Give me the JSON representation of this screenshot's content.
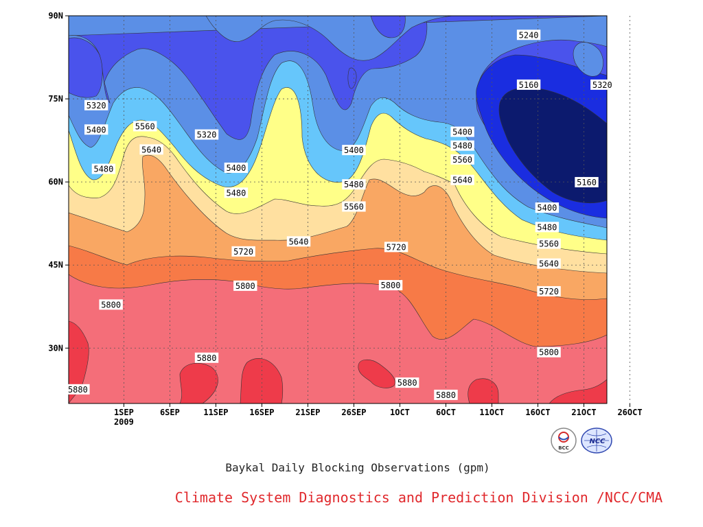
{
  "chart_data": {
    "type": "heatmap",
    "title": "Baykal Daily Blocking Observations (gpm)",
    "xlabel": "",
    "ylabel": "",
    "x_ticks": [
      "1SEP",
      "6SEP",
      "11SEP",
      "16SEP",
      "21SEP",
      "26SEP",
      "1OCT",
      "6OCT",
      "11OCT",
      "16OCT",
      "21OCT",
      "26OCT"
    ],
    "x_year_label": "2009",
    "y_ticks": [
      "90N",
      "75N",
      "60N",
      "45N",
      "30N"
    ],
    "x_domain_days": [
      -3,
      55.5
    ],
    "y_domain_lat": [
      20,
      90
    ],
    "contour_levels": [
      5160,
      5240,
      5320,
      5400,
      5480,
      5560,
      5640,
      5720,
      5800,
      5880
    ],
    "contour_fill_colors": [
      "#0c1a6e",
      "#1a2de0",
      "#4a53ec",
      "#5b8fe6",
      "#66c6fb",
      "#ffff88",
      "#ffe0a0",
      "#f9a763",
      "#f77a47",
      "#f46e79",
      "#ee3b4a"
    ],
    "zero_day_date": "2009-08-29",
    "contour_value_labels": [
      {
        "level": 5320,
        "day": 0.0,
        "lat": 73.8
      },
      {
        "level": 5400,
        "day": 0.0,
        "lat": 69.4
      },
      {
        "level": 5480,
        "day": 0.8,
        "lat": 62.3
      },
      {
        "level": 5560,
        "day": 5.3,
        "lat": 70.0
      },
      {
        "level": 5640,
        "day": 6.0,
        "lat": 65.8
      },
      {
        "level": 5320,
        "day": 12.0,
        "lat": 68.5
      },
      {
        "level": 5400,
        "day": 15.2,
        "lat": 62.5
      },
      {
        "level": 5480,
        "day": 15.2,
        "lat": 58.0
      },
      {
        "level": 5720,
        "day": 16.0,
        "lat": 47.4
      },
      {
        "level": 5800,
        "day": 16.2,
        "lat": 41.2
      },
      {
        "level": 5880,
        "day": 12.0,
        "lat": 28.2
      },
      {
        "level": 5800,
        "day": 1.6,
        "lat": 37.8
      },
      {
        "level": 5880,
        "day": -2.0,
        "lat": 22.5
      },
      {
        "level": 5640,
        "day": 22.0,
        "lat": 49.2
      },
      {
        "level": 5400,
        "day": 28.0,
        "lat": 65.7
      },
      {
        "level": 5480,
        "day": 28.0,
        "lat": 59.5
      },
      {
        "level": 5560,
        "day": 28.0,
        "lat": 55.5
      },
      {
        "level": 5720,
        "day": 32.6,
        "lat": 48.2
      },
      {
        "level": 5800,
        "day": 32.0,
        "lat": 41.3
      },
      {
        "level": 5880,
        "day": 33.8,
        "lat": 23.7
      },
      {
        "level": 5400,
        "day": 39.8,
        "lat": 69.0
      },
      {
        "level": 5480,
        "day": 39.8,
        "lat": 66.5
      },
      {
        "level": 5560,
        "day": 39.8,
        "lat": 64.0
      },
      {
        "level": 5640,
        "day": 39.8,
        "lat": 60.3
      },
      {
        "level": 5240,
        "day": 47.0,
        "lat": 86.5
      },
      {
        "level": 5160,
        "day": 47.0,
        "lat": 77.5
      },
      {
        "level": 5320,
        "day": 55.0,
        "lat": 77.5
      },
      {
        "level": 5160,
        "day": 53.3,
        "lat": 59.9
      },
      {
        "level": 5400,
        "day": 49.0,
        "lat": 55.3
      },
      {
        "level": 5480,
        "day": 49.0,
        "lat": 51.8
      },
      {
        "level": 5560,
        "day": 49.2,
        "lat": 48.8
      },
      {
        "level": 5640,
        "day": 49.2,
        "lat": 45.2
      },
      {
        "level": 5720,
        "day": 49.2,
        "lat": 40.2
      },
      {
        "level": 5800,
        "day": 49.2,
        "lat": 29.2
      },
      {
        "level": 5880,
        "day": 38.0,
        "lat": 21.5
      }
    ],
    "grid": true,
    "legend": "none"
  },
  "footer": {
    "caption": "Baykal Daily Blocking Observations (gpm)",
    "credit": "Climate System Diagnostics and Prediction Division /NCC/CMA",
    "logo_bcc_text": "BCC",
    "logo_ncc_text": "NCC"
  }
}
